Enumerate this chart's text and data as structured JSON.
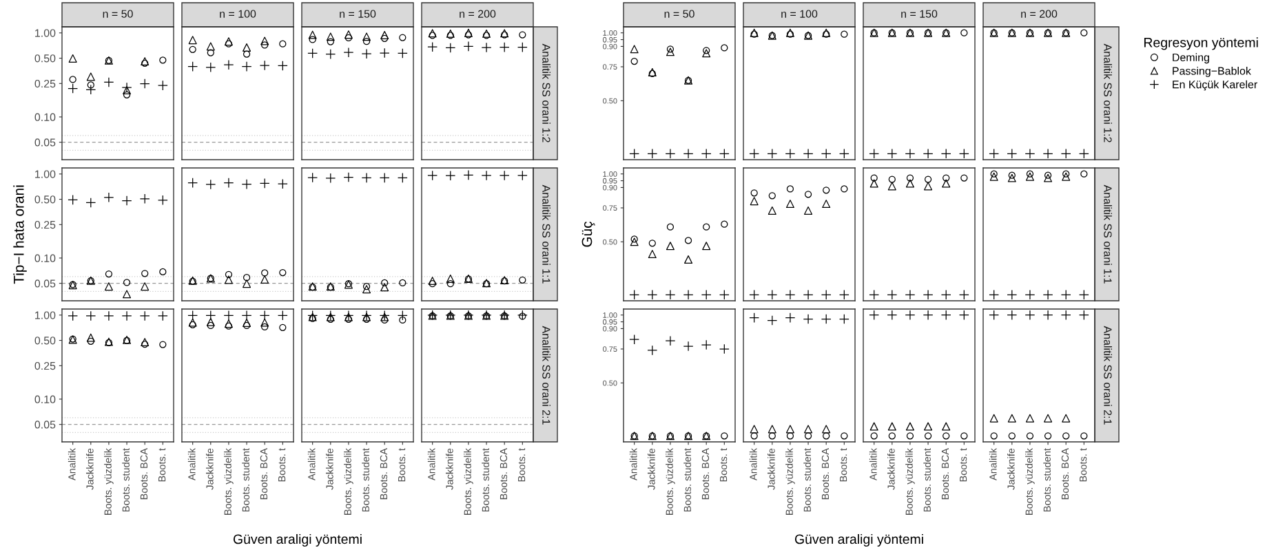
{
  "chart_data": [
    {
      "type": "scatter",
      "title": "n = 50",
      "legend": "right",
      "legend_title": "Regresyon yöntemi",
      "tick_labels": "y",
      "log": true,
      "ylim": [
        0.031,
        1.18
      ],
      "yticks": [
        {
          "value": 0.05,
          "label": "0.05"
        },
        {
          "value": 0.1,
          "label": "0.10"
        },
        {
          "value": 0.25,
          "label": "0.25"
        },
        {
          "value": 0.5,
          "label": "0.50"
        },
        {
          "value": 1,
          "label": "1.00"
        }
      ],
      "ref_lines": [
        {
          "axis": "y",
          "value": 0.05,
          "line_style": "dashed",
          "color": "#999999"
        },
        {
          "axis": "y",
          "value": 0.06,
          "line_style": "dotted",
          "color": "#cccccc"
        },
        {
          "axis": "y",
          "value": 0.04,
          "line_style": "dotted",
          "color": "#cccccc"
        }
      ],
      "categories": [
        "Analitik",
        "Jackknife",
        "Boots. yüzdelik",
        "Boots. student",
        "Boots. BCA",
        "Boots. t"
      ],
      "series": [
        {
          "name": "Deming",
          "color": "#000000",
          "marker": "circle",
          "values": [
            0.279,
            0.24,
            0.47,
            0.183,
            0.436,
            0.474
          ]
        },
        {
          "name": "Passing−Bablok",
          "color": "#000000",
          "marker": "triangle",
          "values": [
            0.496,
            0.301,
            0.47,
            0.208,
            0.459,
            null
          ]
        },
        {
          "name": "En Küçük Kareler",
          "color": "#000000",
          "marker": "cross",
          "values": [
            0.218,
            0.211,
            0.259,
            0.224,
            0.249,
            0.237
          ]
        }
      ]
    },
    {
      "type": "scatter",
      "title": "n = 100",
      "tick_labels": false,
      "log": true,
      "ylim": [
        0.031,
        1.18
      ],
      "ref_lines": [
        {
          "axis": "y",
          "value": 0.05,
          "line_style": "dashed",
          "color": "#999999"
        },
        {
          "axis": "y",
          "value": 0.06,
          "line_style": "dotted",
          "color": "#cccccc"
        },
        {
          "axis": "y",
          "value": 0.04,
          "line_style": "dotted",
          "color": "#cccccc"
        }
      ],
      "categories": [
        "Analitik",
        "Jackknife",
        "Boots. yüzdelik",
        "Boots. student",
        "Boots. BCA",
        "Boots. t"
      ],
      "series": [
        {
          "name": "Deming",
          "color": "#000000",
          "marker": "circle",
          "values": [
            0.636,
            0.581,
            0.74,
            0.559,
            0.717,
            0.74
          ]
        },
        {
          "name": "Passing−Bablok",
          "color": "#000000",
          "marker": "triangle",
          "values": [
            0.822,
            0.691,
            0.791,
            0.67,
            0.803,
            null
          ]
        },
        {
          "name": "En Küçük Kareler",
          "color": "#000000",
          "marker": "cross",
          "values": [
            0.398,
            0.389,
            0.417,
            0.398,
            0.41,
            0.407
          ]
        }
      ]
    },
    {
      "type": "scatter",
      "title": "n = 150",
      "tick_labels": false,
      "log": true,
      "ylim": [
        0.031,
        1.18
      ],
      "ref_lines": [
        {
          "axis": "y",
          "value": 0.05,
          "line_style": "dashed",
          "color": "#999999"
        },
        {
          "axis": "y",
          "value": 0.06,
          "line_style": "dotted",
          "color": "#cccccc"
        },
        {
          "axis": "y",
          "value": 0.04,
          "line_style": "dotted",
          "color": "#cccccc"
        }
      ],
      "categories": [
        "Analitik",
        "Jackknife",
        "Boots. yüzdelik",
        "Boots. student",
        "Boots. BCA",
        "Boots. t"
      ],
      "series": [
        {
          "name": "Deming",
          "color": "#000000",
          "marker": "circle",
          "values": [
            0.834,
            0.785,
            0.873,
            0.791,
            0.86,
            0.88
          ]
        },
        {
          "name": "Passing−Bablok",
          "color": "#000000",
          "marker": "triangle",
          "values": [
            0.948,
            0.9,
            0.956,
            0.9,
            0.941,
            null
          ]
        },
        {
          "name": "En Küçük Kareler",
          "color": "#000000",
          "marker": "cross",
          "values": [
            0.572,
            0.559,
            0.585,
            0.563,
            0.576,
            0.572
          ]
        }
      ]
    },
    {
      "type": "scatter",
      "title": "n = 200",
      "annotations": [
        "Analitik SS orani 1:2"
      ],
      "tick_labels": false,
      "log": true,
      "ylim": [
        0.031,
        1.18
      ],
      "ref_lines": [
        {
          "axis": "y",
          "value": 0.05,
          "line_style": "dashed",
          "color": "#999999"
        },
        {
          "axis": "y",
          "value": 0.06,
          "line_style": "dotted",
          "color": "#cccccc"
        },
        {
          "axis": "y",
          "value": 0.04,
          "line_style": "dotted",
          "color": "#cccccc"
        }
      ],
      "categories": [
        "Analitik",
        "Jackknife",
        "Boots. yüzdelik",
        "Boots. student",
        "Boots. BCA",
        "Boots. t"
      ],
      "series": [
        {
          "name": "Deming",
          "color": "#000000",
          "marker": "circle",
          "values": [
            0.934,
            0.934,
            0.948,
            0.934,
            0.948,
            0.948
          ]
        },
        {
          "name": "Passing−Bablok",
          "color": "#000000",
          "marker": "triangle",
          "values": [
            0.99,
            0.98,
            1.0,
            0.98,
            0.99,
            null
          ]
        },
        {
          "name": "En Küçük Kareler",
          "color": "#000000",
          "marker": "cross",
          "values": [
            0.68,
            0.665,
            0.691,
            0.67,
            0.675,
            0.675
          ]
        }
      ]
    },
    {
      "type": "scatter",
      "ylabel": "Tip−I hata orani",
      "tick_labels": "y",
      "log": true,
      "ylim": [
        0.031,
        1.18
      ],
      "yticks": [
        {
          "value": 0.05,
          "label": "0.05"
        },
        {
          "value": 0.1,
          "label": "0.10"
        },
        {
          "value": 0.25,
          "label": "0.25"
        },
        {
          "value": 0.5,
          "label": "0.50"
        },
        {
          "value": 1,
          "label": "1.00"
        }
      ],
      "ref_lines": [
        {
          "axis": "y",
          "value": 0.05,
          "line_style": "dashed",
          "color": "#999999"
        },
        {
          "axis": "y",
          "value": 0.06,
          "line_style": "dotted",
          "color": "#cccccc"
        },
        {
          "axis": "y",
          "value": 0.04,
          "line_style": "dotted",
          "color": "#cccccc"
        }
      ],
      "categories": [
        "Analitik",
        "Jackknife",
        "Boots. yüzdelik",
        "Boots. student",
        "Boots. BCA",
        "Boots. t"
      ],
      "series": [
        {
          "name": "Deming",
          "color": "#000000",
          "marker": "circle",
          "values": [
            0.0484,
            0.0538,
            0.0646,
            0.0511,
            0.0655,
            0.0686
          ]
        },
        {
          "name": "Passing−Bablok",
          "color": "#000000",
          "marker": "triangle",
          "values": [
            0.0477,
            0.0538,
            0.0459,
            0.0372,
            0.0459,
            null
          ]
        },
        {
          "name": "En Küçük Kareler",
          "color": "#000000",
          "marker": "cross",
          "values": [
            0.492,
            0.456,
            0.526,
            0.481,
            0.507,
            0.488
          ]
        }
      ]
    },
    {
      "type": "scatter",
      "tick_labels": false,
      "log": true,
      "ylim": [
        0.031,
        1.18
      ],
      "ref_lines": [
        {
          "axis": "y",
          "value": 0.05,
          "line_style": "dashed",
          "color": "#999999"
        },
        {
          "axis": "y",
          "value": 0.06,
          "line_style": "dotted",
          "color": "#cccccc"
        },
        {
          "axis": "y",
          "value": 0.04,
          "line_style": "dotted",
          "color": "#cccccc"
        }
      ],
      "categories": [
        "Analitik",
        "Jackknife",
        "Boots. yüzdelik",
        "Boots. student",
        "Boots. BCA",
        "Boots. t"
      ],
      "series": [
        {
          "name": "Deming",
          "color": "#000000",
          "marker": "circle",
          "values": [
            0.053,
            0.0573,
            0.0637,
            0.0586,
            0.0666,
            0.0671
          ]
        },
        {
          "name": "Passing−Bablok",
          "color": "#000000",
          "marker": "triangle",
          "values": [
            0.0538,
            0.0573,
            0.0552,
            0.0495,
            0.0555,
            null
          ]
        },
        {
          "name": "En Küçük Kareler",
          "color": "#000000",
          "marker": "cross",
          "values": [
            0.785,
            0.751,
            0.785,
            0.756,
            0.774,
            0.762
          ]
        }
      ]
    },
    {
      "type": "scatter",
      "tick_labels": false,
      "log": true,
      "ylim": [
        0.031,
        1.18
      ],
      "ref_lines": [
        {
          "axis": "y",
          "value": 0.05,
          "line_style": "dashed",
          "color": "#999999"
        },
        {
          "axis": "y",
          "value": 0.06,
          "line_style": "dotted",
          "color": "#cccccc"
        },
        {
          "axis": "y",
          "value": 0.04,
          "line_style": "dotted",
          "color": "#cccccc"
        }
      ],
      "categories": [
        "Analitik",
        "Jackknife",
        "Boots. yüzdelik",
        "Boots. student",
        "Boots. BCA",
        "Boots. t"
      ],
      "series": [
        {
          "name": "Deming",
          "color": "#000000",
          "marker": "circle",
          "values": [
            0.0452,
            0.0452,
            0.0495,
            0.0459,
            0.0507,
            0.0507
          ]
        },
        {
          "name": "Passing−Bablok",
          "color": "#000000",
          "marker": "triangle",
          "values": [
            0.0459,
            0.0459,
            0.0484,
            0.0426,
            0.045,
            null
          ]
        },
        {
          "name": "En Küçük Kareler",
          "color": "#000000",
          "marker": "cross",
          "values": [
            0.906,
            0.893,
            0.913,
            0.9,
            0.9,
            0.9
          ]
        }
      ]
    },
    {
      "type": "scatter",
      "annotations": [
        "Analitik SS orani 1:1"
      ],
      "tick_labels": false,
      "log": true,
      "ylim": [
        0.031,
        1.18
      ],
      "ref_lines": [
        {
          "axis": "y",
          "value": 0.05,
          "line_style": "dashed",
          "color": "#999999"
        },
        {
          "axis": "y",
          "value": 0.06,
          "line_style": "dotted",
          "color": "#cccccc"
        },
        {
          "axis": "y",
          "value": 0.04,
          "line_style": "dotted",
          "color": "#cccccc"
        }
      ],
      "categories": [
        "Analitik",
        "Jackknife",
        "Boots. yüzdelik",
        "Boots. student",
        "Boots. BCA",
        "Boots. t"
      ],
      "series": [
        {
          "name": "Deming",
          "color": "#000000",
          "marker": "circle",
          "values": [
            0.0495,
            0.0495,
            0.0563,
            0.0495,
            0.0535,
            0.0548
          ]
        },
        {
          "name": "Passing−Bablok",
          "color": "#000000",
          "marker": "triangle",
          "values": [
            0.0535,
            0.0568,
            0.0568,
            0.0503,
            0.0545,
            null
          ]
        },
        {
          "name": "En Küçük Kareler",
          "color": "#000000",
          "marker": "cross",
          "values": [
            0.96,
            0.956,
            0.97,
            0.96,
            0.96,
            0.96
          ]
        }
      ]
    },
    {
      "type": "scatter",
      "xlabel": "Güven araligi yöntemi",
      "log": true,
      "ylim": [
        0.031,
        1.18
      ],
      "yticks": [
        {
          "value": 0.05,
          "label": "0.05"
        },
        {
          "value": 0.1,
          "label": "0.10"
        },
        {
          "value": 0.25,
          "label": "0.25"
        },
        {
          "value": 0.5,
          "label": "0.50"
        },
        {
          "value": 1,
          "label": "1.00"
        }
      ],
      "ref_lines": [
        {
          "axis": "y",
          "value": 0.05,
          "line_style": "dashed",
          "color": "#999999"
        },
        {
          "axis": "y",
          "value": 0.06,
          "line_style": "dotted",
          "color": "#cccccc"
        },
        {
          "axis": "y",
          "value": 0.04,
          "line_style": "dotted",
          "color": "#cccccc"
        }
      ],
      "categories": [
        "Analitik",
        "Jackknife",
        "Boots. yüzdelik",
        "Boots. student",
        "Boots. BCA",
        "Boots. t"
      ],
      "series": [
        {
          "name": "Deming",
          "color": "#000000",
          "marker": "circle",
          "values": [
            0.519,
            0.488,
            0.47,
            0.499,
            0.449,
            0.446
          ]
        },
        {
          "name": "Passing−Bablok",
          "color": "#000000",
          "marker": "triangle",
          "values": [
            0.511,
            0.539,
            0.481,
            0.507,
            0.477,
            null
          ]
        },
        {
          "name": "En Küçük Kareler",
          "color": "#000000",
          "marker": "cross",
          "values": [
            0.978,
            0.978,
            0.978,
            0.978,
            0.978,
            0.978
          ]
        }
      ]
    },
    {
      "type": "scatter",
      "tick_labels": "x",
      "log": true,
      "ylim": [
        0.031,
        1.18
      ],
      "ref_lines": [
        {
          "axis": "y",
          "value": 0.05,
          "line_style": "dashed",
          "color": "#999999"
        },
        {
          "axis": "y",
          "value": 0.06,
          "line_style": "dotted",
          "color": "#cccccc"
        },
        {
          "axis": "y",
          "value": 0.04,
          "line_style": "dotted",
          "color": "#cccccc"
        }
      ],
      "categories": [
        "Analitik",
        "Jackknife",
        "Boots. yüzdelik",
        "Boots. student",
        "Boots. BCA",
        "Boots. t"
      ],
      "series": [
        {
          "name": "Deming",
          "color": "#000000",
          "marker": "circle",
          "values": [
            0.768,
            0.751,
            0.74,
            0.751,
            0.723,
            0.712
          ]
        },
        {
          "name": "Passing−Bablok",
          "color": "#000000",
          "marker": "triangle",
          "values": [
            0.816,
            0.828,
            0.791,
            0.809,
            0.816,
            null
          ]
        },
        {
          "name": "En Küçük Kareler",
          "color": "#000000",
          "marker": "cross",
          "values": [
            0.99,
            0.99,
            0.99,
            0.99,
            0.99,
            0.99
          ]
        }
      ]
    },
    {
      "type": "scatter",
      "tick_labels": "x",
      "log": true,
      "ylim": [
        0.031,
        1.18
      ],
      "ref_lines": [
        {
          "axis": "y",
          "value": 0.05,
          "line_style": "dashed",
          "color": "#999999"
        },
        {
          "axis": "y",
          "value": 0.06,
          "line_style": "dotted",
          "color": "#cccccc"
        },
        {
          "axis": "y",
          "value": 0.04,
          "line_style": "dotted",
          "color": "#cccccc"
        }
      ],
      "categories": [
        "Analitik",
        "Jackknife",
        "Boots. yüzdelik",
        "Boots. student",
        "Boots. BCA",
        "Boots. t"
      ],
      "series": [
        {
          "name": "Deming",
          "color": "#000000",
          "marker": "circle",
          "values": [
            0.913,
            0.893,
            0.893,
            0.893,
            0.873,
            0.873
          ]
        },
        {
          "name": "Passing−Bablok",
          "color": "#000000",
          "marker": "triangle",
          "values": [
            0.948,
            0.948,
            0.948,
            0.948,
            0.948,
            null
          ]
        },
        {
          "name": "En Küçük Kareler",
          "color": "#000000",
          "marker": "cross",
          "values": [
            0.99,
            0.99,
            0.99,
            0.99,
            0.99,
            0.99
          ]
        }
      ]
    },
    {
      "type": "scatter",
      "annotations": [
        "Analitik SS orani 2:1"
      ],
      "tick_labels": "x",
      "log": true,
      "ylim": [
        0.031,
        1.18
      ],
      "ref_lines": [
        {
          "axis": "y",
          "value": 0.05,
          "line_style": "dashed",
          "color": "#999999"
        },
        {
          "axis": "y",
          "value": 0.06,
          "line_style": "dotted",
          "color": "#cccccc"
        },
        {
          "axis": "y",
          "value": 0.04,
          "line_style": "dotted",
          "color": "#cccccc"
        }
      ],
      "categories": [
        "Analitik",
        "Jackknife",
        "Boots. yüzdelik",
        "Boots. student",
        "Boots. BCA",
        "Boots. t"
      ],
      "series": [
        {
          "name": "Deming",
          "color": "#000000",
          "marker": "circle",
          "values": [
            0.978,
            0.978,
            0.978,
            0.978,
            0.978,
            0.97
          ]
        },
        {
          "name": "Passing−Bablok",
          "color": "#000000",
          "marker": "triangle",
          "values": [
            0.985,
            0.985,
            0.985,
            0.985,
            0.985,
            null
          ]
        },
        {
          "name": "En Küçük Kareler",
          "color": "#000000",
          "marker": "cross",
          "values": [
            1.0,
            1.0,
            1.0,
            1.0,
            1.0,
            1.0
          ]
        }
      ]
    },
    {
      "type": "scatter",
      "title": "n = 50",
      "tick_labels": "y",
      "ylim": [
        0.066,
        1.044
      ],
      "yticks": [
        {
          "value": 0.5,
          "label": "0.50"
        },
        {
          "value": 0.75,
          "label": "0.75"
        },
        {
          "value": 0.9,
          "label": "0.90"
        },
        {
          "value": 0.95,
          "label": "0.95"
        },
        {
          "value": 1,
          "label": "1.00"
        }
      ],
      "categories": [
        "Analitik",
        "Jackknife",
        "Boots. yüzdelik",
        "Boots. student",
        "Boots. BCA",
        "Boots. t"
      ],
      "series": [
        {
          "name": "Deming",
          "color": "#000000",
          "marker": "circle",
          "values": [
            0.79,
            0.7,
            0.88,
            0.65,
            0.87,
            0.89
          ]
        },
        {
          "name": "Passing−Bablok",
          "color": "#000000",
          "marker": "triangle",
          "values": [
            0.88,
            0.71,
            0.86,
            0.65,
            0.85,
            null
          ]
        },
        {
          "name": "En Küçük Kareler",
          "color": "#000000",
          "marker": "cross",
          "values": [
            0.11,
            0.11,
            0.11,
            0.11,
            0.11,
            0.11
          ]
        }
      ]
    },
    {
      "type": "scatter",
      "title": "n = 100",
      "tick_labels": false,
      "ylim": [
        0.066,
        1.044
      ],
      "categories": [
        "Analitik",
        "Jackknife",
        "Boots. yüzdelik",
        "Boots. student",
        "Boots. BCA",
        "Boots. t"
      ],
      "series": [
        {
          "name": "Deming",
          "color": "#000000",
          "marker": "circle",
          "values": [
            0.99,
            0.98,
            0.99,
            0.98,
            0.99,
            0.99
          ]
        },
        {
          "name": "Passing−Bablok",
          "color": "#000000",
          "marker": "triangle",
          "values": [
            1.0,
            0.98,
            1.0,
            0.98,
            1.0,
            null
          ]
        },
        {
          "name": "En Küçük Kareler",
          "color": "#000000",
          "marker": "cross",
          "values": [
            0.11,
            0.11,
            0.11,
            0.11,
            0.11,
            0.11
          ]
        }
      ]
    },
    {
      "type": "scatter",
      "title": "n = 150",
      "tick_labels": false,
      "ylim": [
        0.066,
        1.044
      ],
      "categories": [
        "Analitik",
        "Jackknife",
        "Boots. yüzdelik",
        "Boots. student",
        "Boots. BCA",
        "Boots. t"
      ],
      "series": [
        {
          "name": "Deming",
          "color": "#000000",
          "marker": "circle",
          "values": [
            1.0,
            1.0,
            1.0,
            1.0,
            1.0,
            1.0
          ]
        },
        {
          "name": "Passing−Bablok",
          "color": "#000000",
          "marker": "triangle",
          "values": [
            1.0,
            1.0,
            1.0,
            1.0,
            1.0,
            null
          ]
        },
        {
          "name": "En Küçük Kareler",
          "color": "#000000",
          "marker": "cross",
          "values": [
            0.11,
            0.11,
            0.11,
            0.11,
            0.11,
            0.11
          ]
        }
      ]
    },
    {
      "type": "scatter",
      "title": "n = 200",
      "annotations": [
        "Analitik SS orani 1:2"
      ],
      "tick_labels": false,
      "ylim": [
        0.066,
        1.044
      ],
      "categories": [
        "Analitik",
        "Jackknife",
        "Boots. yüzdelik",
        "Boots. student",
        "Boots. BCA",
        "Boots. t"
      ],
      "series": [
        {
          "name": "Deming",
          "color": "#000000",
          "marker": "circle",
          "values": [
            1.0,
            1.0,
            1.0,
            1.0,
            1.0,
            1.0
          ]
        },
        {
          "name": "Passing−Bablok",
          "color": "#000000",
          "marker": "triangle",
          "values": [
            1.0,
            1.0,
            1.0,
            1.0,
            1.0,
            null
          ]
        },
        {
          "name": "En Küçük Kareler",
          "color": "#000000",
          "marker": "cross",
          "values": [
            0.11,
            0.11,
            0.11,
            0.11,
            0.11,
            0.11
          ]
        }
      ]
    },
    {
      "type": "scatter",
      "ylabel": "Güç",
      "tick_labels": "y",
      "ylim": [
        0.066,
        1.044
      ],
      "yticks": [
        {
          "value": 0.5,
          "label": "0.50"
        },
        {
          "value": 0.75,
          "label": "0.75"
        },
        {
          "value": 0.9,
          "label": "0.90"
        },
        {
          "value": 0.95,
          "label": "0.95"
        },
        {
          "value": 1,
          "label": "1.00"
        }
      ],
      "categories": [
        "Analitik",
        "Jackknife",
        "Boots. yüzdelik",
        "Boots. student",
        "Boots. BCA",
        "Boots. t"
      ],
      "series": [
        {
          "name": "Deming",
          "color": "#000000",
          "marker": "circle",
          "values": [
            0.52,
            0.49,
            0.61,
            0.51,
            0.61,
            0.63
          ]
        },
        {
          "name": "Passing−Bablok",
          "color": "#000000",
          "marker": "triangle",
          "values": [
            0.5,
            0.41,
            0.47,
            0.37,
            0.47,
            null
          ]
        },
        {
          "name": "En Küçük Kareler",
          "color": "#000000",
          "marker": "cross",
          "values": [
            0.11,
            0.11,
            0.11,
            0.11,
            0.11,
            0.11
          ]
        }
      ]
    },
    {
      "type": "scatter",
      "tick_labels": false,
      "ylim": [
        0.066,
        1.044
      ],
      "categories": [
        "Analitik",
        "Jackknife",
        "Boots. yüzdelik",
        "Boots. student",
        "Boots. BCA",
        "Boots. t"
      ],
      "series": [
        {
          "name": "Deming",
          "color": "#000000",
          "marker": "circle",
          "values": [
            0.86,
            0.84,
            0.89,
            0.85,
            0.88,
            0.89
          ]
        },
        {
          "name": "Passing−Bablok",
          "color": "#000000",
          "marker": "triangle",
          "values": [
            0.8,
            0.73,
            0.78,
            0.73,
            0.78,
            null
          ]
        },
        {
          "name": "En Küçük Kareler",
          "color": "#000000",
          "marker": "cross",
          "values": [
            0.11,
            0.11,
            0.11,
            0.11,
            0.11,
            0.11
          ]
        }
      ]
    },
    {
      "type": "scatter",
      "tick_labels": false,
      "ylim": [
        0.066,
        1.044
      ],
      "categories": [
        "Analitik",
        "Jackknife",
        "Boots. yüzdelik",
        "Boots. student",
        "Boots. BCA",
        "Boots. t"
      ],
      "series": [
        {
          "name": "Deming",
          "color": "#000000",
          "marker": "circle",
          "values": [
            0.97,
            0.96,
            0.97,
            0.96,
            0.97,
            0.97
          ]
        },
        {
          "name": "Passing−Bablok",
          "color": "#000000",
          "marker": "triangle",
          "values": [
            0.93,
            0.91,
            0.93,
            0.91,
            0.93,
            null
          ]
        },
        {
          "name": "En Küçük Kareler",
          "color": "#000000",
          "marker": "cross",
          "values": [
            0.11,
            0.11,
            0.11,
            0.11,
            0.11,
            0.11
          ]
        }
      ]
    },
    {
      "type": "scatter",
      "annotations": [
        "Analitik SS orani 1:1"
      ],
      "tick_labels": false,
      "ylim": [
        0.066,
        1.044
      ],
      "categories": [
        "Analitik",
        "Jackknife",
        "Boots. yüzdelik",
        "Boots. student",
        "Boots. BCA",
        "Boots. t"
      ],
      "series": [
        {
          "name": "Deming",
          "color": "#000000",
          "marker": "circle",
          "values": [
            1.0,
            0.99,
            1.0,
            0.99,
            1.0,
            1.0
          ]
        },
        {
          "name": "Passing−Bablok",
          "color": "#000000",
          "marker": "triangle",
          "values": [
            0.98,
            0.97,
            0.98,
            0.97,
            0.98,
            null
          ]
        },
        {
          "name": "En Küçük Kareler",
          "color": "#000000",
          "marker": "cross",
          "values": [
            0.11,
            0.11,
            0.11,
            0.11,
            0.11,
            0.11
          ]
        }
      ]
    },
    {
      "type": "scatter",
      "xlabel": "Güven araligi yöntemi",
      "ylim": [
        0.066,
        1.044
      ],
      "yticks": [
        {
          "value": 0.5,
          "label": "0.50"
        },
        {
          "value": 0.75,
          "label": "0.75"
        },
        {
          "value": 0.9,
          "label": "0.90"
        },
        {
          "value": 0.95,
          "label": "0.95"
        },
        {
          "value": 1,
          "label": "1.00"
        }
      ],
      "categories": [
        "Analitik",
        "Jackknife",
        "Boots. yüzdelik",
        "Boots. student",
        "Boots. BCA",
        "Boots. t"
      ],
      "series": [
        {
          "name": "Deming",
          "color": "#000000",
          "marker": "circle",
          "values": [
            0.11,
            0.11,
            0.11,
            0.11,
            0.11,
            0.11
          ]
        },
        {
          "name": "Passing−Bablok",
          "color": "#000000",
          "marker": "triangle",
          "values": [
            0.11,
            0.11,
            0.11,
            0.11,
            0.11,
            null
          ]
        },
        {
          "name": "En Küçük Kareler",
          "color": "#000000",
          "marker": "cross",
          "values": [
            0.82,
            0.74,
            0.81,
            0.77,
            0.78,
            0.75
          ]
        }
      ]
    },
    {
      "type": "scatter",
      "tick_labels": "x",
      "ylim": [
        0.066,
        1.044
      ],
      "categories": [
        "Analitik",
        "Jackknife",
        "Boots. yüzdelik",
        "Boots. student",
        "Boots. BCA",
        "Boots. t"
      ],
      "series": [
        {
          "name": "Deming",
          "color": "#000000",
          "marker": "circle",
          "values": [
            0.11,
            0.11,
            0.11,
            0.11,
            0.11,
            0.11
          ]
        },
        {
          "name": "Passing−Bablok",
          "color": "#000000",
          "marker": "triangle",
          "values": [
            0.16,
            0.16,
            0.16,
            0.16,
            0.16,
            null
          ]
        },
        {
          "name": "En Küçük Kareler",
          "color": "#000000",
          "marker": "cross",
          "values": [
            0.98,
            0.96,
            0.98,
            0.97,
            0.97,
            0.97
          ]
        }
      ]
    },
    {
      "type": "scatter",
      "tick_labels": "x",
      "ylim": [
        0.066,
        1.044
      ],
      "categories": [
        "Analitik",
        "Jackknife",
        "Boots. yüzdelik",
        "Boots. student",
        "Boots. BCA",
        "Boots. t"
      ],
      "series": [
        {
          "name": "Deming",
          "color": "#000000",
          "marker": "circle",
          "values": [
            0.11,
            0.11,
            0.11,
            0.11,
            0.11,
            0.11
          ]
        },
        {
          "name": "Passing−Bablok",
          "color": "#000000",
          "marker": "triangle",
          "values": [
            0.18,
            0.18,
            0.18,
            0.18,
            0.18,
            null
          ]
        },
        {
          "name": "En Küçük Kareler",
          "color": "#000000",
          "marker": "cross",
          "values": [
            1.0,
            1.0,
            1.0,
            1.0,
            1.0,
            1.0
          ]
        }
      ]
    },
    {
      "type": "scatter",
      "annotations": [
        "Analitik SS orani 2:1"
      ],
      "tick_labels": "x",
      "ylim": [
        0.066,
        1.044
      ],
      "categories": [
        "Analitik",
        "Jackknife",
        "Boots. yüzdelik",
        "Boots. student",
        "Boots. BCA",
        "Boots. t"
      ],
      "series": [
        {
          "name": "Deming",
          "color": "#000000",
          "marker": "circle",
          "values": [
            0.11,
            0.11,
            0.11,
            0.11,
            0.11,
            0.11
          ]
        },
        {
          "name": "Passing−Bablok",
          "color": "#000000",
          "marker": "triangle",
          "values": [
            0.24,
            0.24,
            0.24,
            0.24,
            0.24,
            null
          ]
        },
        {
          "name": "En Küçük Kareler",
          "color": "#000000",
          "marker": "cross",
          "values": [
            1.0,
            1.0,
            1.0,
            1.0,
            1.0,
            1.0
          ]
        }
      ]
    }
  ]
}
